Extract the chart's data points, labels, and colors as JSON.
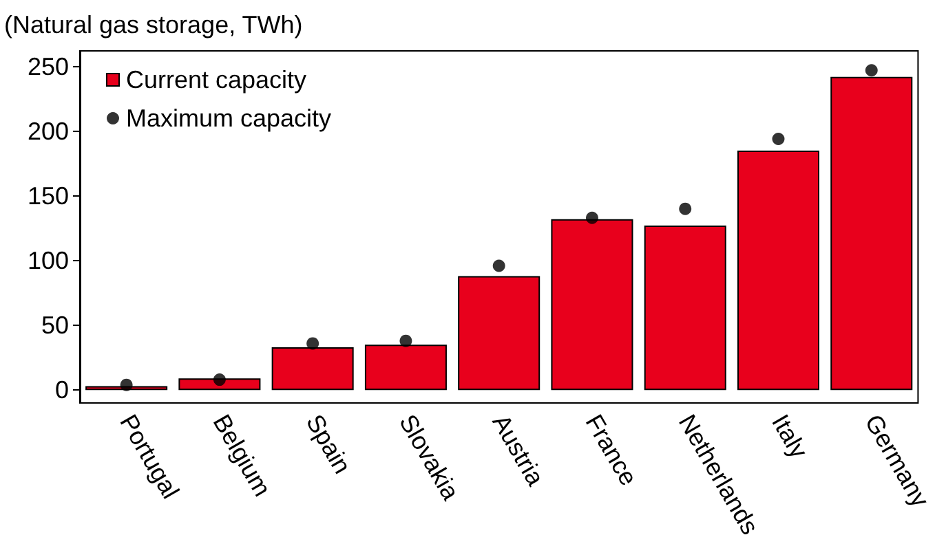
{
  "chart_data": {
    "type": "bar",
    "ylabel": "(Natural gas storage, TWh)",
    "categories": [
      "Portugal",
      "Belgium",
      "Spain",
      "Slovakia",
      "Austria",
      "France",
      "Netherlands",
      "Italy",
      "Germany"
    ],
    "series": [
      {
        "name": "Current capacity",
        "color": "#e8001c",
        "values": [
          3,
          9,
          33,
          35,
          88,
          132,
          127,
          185,
          242
        ]
      },
      {
        "name": "Maximum capacity",
        "type": "scatter",
        "color": "#000000",
        "marker": "circle",
        "values": [
          4,
          8,
          36,
          38,
          96,
          133,
          140,
          194,
          247
        ]
      }
    ],
    "ylim": [
      -10,
      262
    ],
    "yticks": [
      0,
      50,
      100,
      150,
      200,
      250
    ],
    "grid": false,
    "legend": "top left"
  }
}
